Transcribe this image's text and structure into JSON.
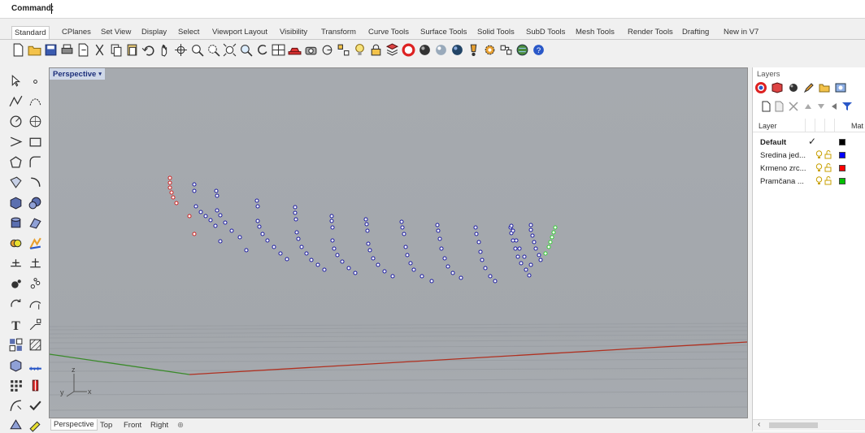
{
  "command": {
    "label": "Command:",
    "value": ""
  },
  "tabs": [
    "Standard",
    "CPlanes",
    "Set View",
    "Display",
    "Select",
    "Viewport Layout",
    "Visibility",
    "Transform",
    "Curve Tools",
    "Surface Tools",
    "Solid Tools",
    "SubD Tools",
    "Mesh Tools",
    "Render Tools",
    "Drafting",
    "New in V7"
  ],
  "active_tab": "Standard",
  "toolbar_icons": [
    "new-icon",
    "open-icon",
    "save-icon",
    "print-icon",
    "import-icon",
    "cut-icon",
    "copy-icon",
    "paste-icon",
    "undo-icon",
    "pan-icon",
    "rotate-view-icon",
    "zoom-icon",
    "zoom-window-icon",
    "zoom-extents-icon",
    "zoom-selected-icon",
    "undo-view-icon",
    "four-viewports-icon",
    "car-icon",
    "camera-icon",
    "ortho-icon",
    "grid-snap-icon",
    "lightbulb-icon",
    "lock-icon",
    "layers-icon",
    "render-color-icon",
    "shaded-sphere-icon",
    "gray-sphere-icon",
    "render-sphere-icon",
    "light-icon",
    "settings-gear-icon",
    "object-properties-icon",
    "globe-icon",
    "help-icon"
  ],
  "viewport": {
    "title": "Perspective",
    "dropdown": "▾",
    "axis_z": "z",
    "axis_y": "y",
    "axis_x": "x"
  },
  "viewport_tabs": [
    "Perspective",
    "Top",
    "Front",
    "Right",
    "⊕"
  ],
  "active_viewport_tab": "Perspective",
  "layers": {
    "title": "Layers",
    "col_layer": "Layer",
    "col_material": "Mat",
    "rows": [
      {
        "name": "Default",
        "current": true,
        "color": "#000000"
      },
      {
        "name": "Sredina jed...",
        "current": false,
        "color": "#0000ff"
      },
      {
        "name": "Krmeno zrc...",
        "current": false,
        "color": "#ff0000"
      },
      {
        "name": "Pramčana ...",
        "current": false,
        "color": "#00c000"
      }
    ]
  },
  "colors": {
    "accent": "#1c2f7a",
    "point_blue": "#1a1aa0",
    "point_red": "#cc2222",
    "point_green": "#33cc33",
    "axis_red": "#b03020",
    "axis_green": "#3a8a2a"
  }
}
